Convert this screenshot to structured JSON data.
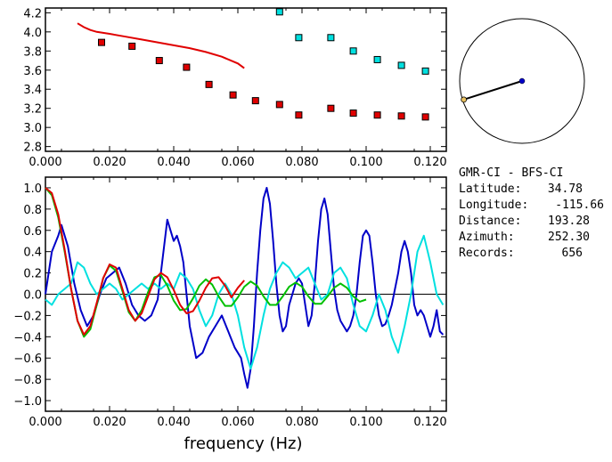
{
  "station_pair": "GMR-CI  -  BFS-CI",
  "info": [
    {
      "label": "Latitude:",
      "value": "34.78"
    },
    {
      "label": "Longitude:",
      "value": "-115.66"
    },
    {
      "label": "Distance:",
      "value": "193.28"
    },
    {
      "label": "Azimuth:",
      "value": "252.30"
    },
    {
      "label": "Records:",
      "value": "656"
    }
  ],
  "colors": {
    "red": "#e00000",
    "cyan": "#00e0e0",
    "blue": "#0000c8",
    "green": "#00c000",
    "axis": "#000000"
  },
  "chart_data": [
    {
      "type": "scatter",
      "title": "",
      "xlabel": "",
      "ylabel": "",
      "xlim": [
        0.0,
        0.125
      ],
      "ylim": [
        2.75,
        4.25
      ],
      "xticks": [
        "0.000",
        "0.020",
        "0.040",
        "0.060",
        "0.080",
        "0.100",
        "0.120"
      ],
      "yticks": [
        "2.8",
        "3.0",
        "3.2",
        "3.4",
        "3.6",
        "3.8",
        "4.0",
        "4.2"
      ],
      "grid": false,
      "series": [
        {
          "kind": "line",
          "color": "red",
          "x": [
            0.01,
            0.012,
            0.014,
            0.016,
            0.02,
            0.025,
            0.03,
            0.035,
            0.04,
            0.045,
            0.05,
            0.055,
            0.06,
            0.062
          ],
          "y": [
            4.09,
            4.05,
            4.02,
            4.0,
            3.98,
            3.95,
            3.92,
            3.89,
            3.86,
            3.83,
            3.79,
            3.74,
            3.67,
            3.62
          ]
        },
        {
          "kind": "markers",
          "color": "red",
          "x": [
            0.0175,
            0.027,
            0.0355,
            0.044,
            0.051,
            0.0585,
            0.0655,
            0.073,
            0.079,
            0.089,
            0.096,
            0.1035,
            0.111,
            0.1185
          ],
          "y": [
            3.89,
            3.85,
            3.7,
            3.63,
            3.45,
            3.34,
            3.28,
            3.24,
            3.13,
            3.2,
            3.15,
            3.13,
            3.12,
            3.11
          ]
        },
        {
          "kind": "markers",
          "color": "cyan",
          "x": [
            0.073,
            0.079,
            0.089,
            0.096,
            0.1035,
            0.111,
            0.1185
          ],
          "y": [
            4.21,
            3.94,
            3.94,
            3.8,
            3.71,
            3.65,
            3.59
          ]
        }
      ]
    },
    {
      "type": "line",
      "title": "",
      "xlabel": "frequency (Hz)",
      "ylabel": "",
      "xlim": [
        0.0,
        0.125
      ],
      "ylim": [
        -1.1,
        1.1
      ],
      "xticks": [
        "0.000",
        "0.020",
        "0.040",
        "0.060",
        "0.080",
        "0.100",
        "0.120"
      ],
      "yticks": [
        "-1.0",
        "-0.8",
        "-0.6",
        "-0.4",
        "-0.2",
        "0.0",
        "0.2",
        "0.4",
        "0.6",
        "0.8",
        "1.0"
      ],
      "grid": false,
      "series": [
        {
          "color": "blue",
          "x": [
            0.0,
            0.002,
            0.004,
            0.005,
            0.007,
            0.009,
            0.011,
            0.013,
            0.015,
            0.017,
            0.019,
            0.021,
            0.023,
            0.025,
            0.027,
            0.029,
            0.031,
            0.033,
            0.035,
            0.036,
            0.037,
            0.038,
            0.039,
            0.04,
            0.041,
            0.042,
            0.043,
            0.044,
            0.045,
            0.047,
            0.049,
            0.051,
            0.053,
            0.055,
            0.057,
            0.059,
            0.061,
            0.062,
            0.063,
            0.064,
            0.065,
            0.066,
            0.067,
            0.068,
            0.069,
            0.07,
            0.071,
            0.072,
            0.073,
            0.074,
            0.075,
            0.076,
            0.077,
            0.078,
            0.079,
            0.08,
            0.081,
            0.082,
            0.083,
            0.084,
            0.085,
            0.086,
            0.087,
            0.088,
            0.089,
            0.09,
            0.091,
            0.092,
            0.093,
            0.094,
            0.095,
            0.096,
            0.097,
            0.098,
            0.099,
            0.1,
            0.101,
            0.102,
            0.103,
            0.104,
            0.105,
            0.106,
            0.107,
            0.108,
            0.109,
            0.11,
            0.111,
            0.112,
            0.113,
            0.114,
            0.115,
            0.116,
            0.117,
            0.118,
            0.119,
            0.12,
            0.121,
            0.122,
            0.123,
            0.124
          ],
          "y": [
            0.0,
            0.4,
            0.55,
            0.65,
            0.45,
            0.1,
            -0.15,
            -0.3,
            -0.2,
            0.0,
            0.15,
            0.2,
            0.25,
            0.1,
            -0.1,
            -0.2,
            -0.25,
            -0.2,
            -0.05,
            0.2,
            0.45,
            0.7,
            0.6,
            0.5,
            0.55,
            0.45,
            0.3,
            0.0,
            -0.3,
            -0.6,
            -0.55,
            -0.4,
            -0.3,
            -0.2,
            -0.35,
            -0.5,
            -0.6,
            -0.75,
            -0.88,
            -0.7,
            -0.3,
            0.2,
            0.6,
            0.9,
            1.0,
            0.85,
            0.5,
            0.1,
            -0.2,
            -0.35,
            -0.3,
            -0.1,
            0.0,
            0.1,
            0.15,
            0.1,
            -0.1,
            -0.3,
            -0.2,
            0.1,
            0.5,
            0.8,
            0.9,
            0.75,
            0.4,
            0.05,
            -0.15,
            -0.25,
            -0.3,
            -0.35,
            -0.3,
            -0.2,
            0.0,
            0.3,
            0.55,
            0.6,
            0.55,
            0.3,
            0.0,
            -0.2,
            -0.3,
            -0.28,
            -0.2,
            -0.1,
            0.05,
            0.2,
            0.4,
            0.5,
            0.4,
            0.2,
            -0.1,
            -0.2,
            -0.15,
            -0.2,
            -0.3,
            -0.4,
            -0.3,
            -0.15,
            -0.35,
            -0.38
          ]
        },
        {
          "color": "cyan",
          "x": [
            0.0,
            0.002,
            0.004,
            0.006,
            0.008,
            0.01,
            0.012,
            0.014,
            0.016,
            0.018,
            0.02,
            0.022,
            0.024,
            0.026,
            0.028,
            0.03,
            0.032,
            0.034,
            0.036,
            0.038,
            0.04,
            0.042,
            0.044,
            0.046,
            0.048,
            0.05,
            0.052,
            0.054,
            0.056,
            0.058,
            0.06,
            0.062,
            0.064,
            0.066,
            0.068,
            0.07,
            0.072,
            0.074,
            0.076,
            0.078,
            0.08,
            0.082,
            0.084,
            0.086,
            0.088,
            0.09,
            0.092,
            0.094,
            0.096,
            0.098,
            0.1,
            0.102,
            0.104,
            0.106,
            0.108,
            0.11,
            0.112,
            0.114,
            0.116,
            0.118,
            0.12,
            0.122,
            0.124
          ],
          "y": [
            -0.05,
            -0.1,
            0.0,
            0.05,
            0.1,
            0.3,
            0.25,
            0.1,
            0.0,
            0.05,
            0.1,
            0.05,
            -0.05,
            0.0,
            0.05,
            0.1,
            0.05,
            0.1,
            0.05,
            0.1,
            0.05,
            0.2,
            0.15,
            0.05,
            -0.15,
            -0.3,
            -0.2,
            0.0,
            0.1,
            0.0,
            -0.2,
            -0.5,
            -0.7,
            -0.5,
            -0.2,
            0.05,
            0.2,
            0.3,
            0.25,
            0.15,
            0.2,
            0.25,
            0.1,
            -0.05,
            0.0,
            0.2,
            0.25,
            0.15,
            -0.1,
            -0.3,
            -0.35,
            -0.2,
            0.0,
            -0.15,
            -0.4,
            -0.55,
            -0.3,
            0.0,
            0.4,
            0.55,
            0.3,
            0.0,
            -0.1
          ]
        },
        {
          "color": "green",
          "x": [
            0.0,
            0.002,
            0.004,
            0.006,
            0.008,
            0.01,
            0.012,
            0.014,
            0.016,
            0.018,
            0.02,
            0.022,
            0.024,
            0.026,
            0.028,
            0.03,
            0.032,
            0.034,
            0.036,
            0.038,
            0.04,
            0.042,
            0.044,
            0.046,
            0.048,
            0.05,
            0.052,
            0.054,
            0.056,
            0.058,
            0.06,
            0.062,
            0.064,
            0.066,
            0.068,
            0.07,
            0.072,
            0.074,
            0.076,
            0.078,
            0.08,
            0.082,
            0.084,
            0.086,
            0.088,
            0.09,
            0.092,
            0.094,
            0.096,
            0.098,
            0.1
          ],
          "y": [
            1.0,
            0.93,
            0.72,
            0.4,
            0.05,
            -0.25,
            -0.4,
            -0.33,
            -0.1,
            0.15,
            0.27,
            0.22,
            0.03,
            -0.17,
            -0.25,
            -0.15,
            0.02,
            0.16,
            0.18,
            0.08,
            -0.06,
            -0.15,
            -0.14,
            -0.04,
            0.08,
            0.14,
            0.09,
            -0.02,
            -0.11,
            -0.11,
            -0.03,
            0.07,
            0.12,
            0.08,
            -0.02,
            -0.1,
            -0.1,
            -0.02,
            0.07,
            0.11,
            0.07,
            -0.02,
            -0.09,
            -0.09,
            -0.02,
            0.06,
            0.1,
            0.06,
            -0.02,
            -0.07,
            -0.05
          ]
        },
        {
          "color": "red",
          "x": [
            0.0,
            0.002,
            0.004,
            0.006,
            0.008,
            0.01,
            0.012,
            0.014,
            0.016,
            0.018,
            0.02,
            0.022,
            0.024,
            0.026,
            0.028,
            0.03,
            0.032,
            0.034,
            0.036,
            0.038,
            0.04,
            0.042,
            0.044,
            0.046,
            0.048,
            0.05,
            0.052,
            0.054,
            0.056,
            0.058,
            0.06,
            0.062
          ],
          "y": [
            1.0,
            0.95,
            0.75,
            0.42,
            0.05,
            -0.25,
            -0.38,
            -0.3,
            -0.08,
            0.15,
            0.28,
            0.25,
            0.05,
            -0.15,
            -0.25,
            -0.18,
            -0.02,
            0.14,
            0.2,
            0.16,
            0.04,
            -0.1,
            -0.18,
            -0.16,
            -0.06,
            0.06,
            0.15,
            0.16,
            0.08,
            -0.03,
            0.06,
            0.13
          ]
        }
      ]
    }
  ],
  "polar": {
    "azimuth_deg": 252.3,
    "relative_distance": 0.98
  }
}
